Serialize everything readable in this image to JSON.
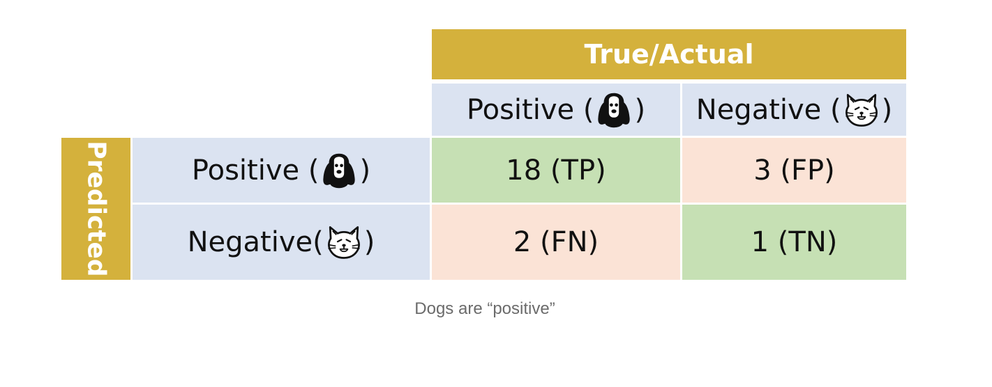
{
  "matrix": {
    "actual_header": "True/Actual",
    "predicted_header": "Predicted",
    "col_labels": [
      "Positive (",
      "Negative ("
    ],
    "row_labels": [
      "Positive (",
      "Negative("
    ],
    "close_paren": ")",
    "cells": [
      [
        "18 (TP)",
        "3 (FP)"
      ],
      [
        "2 (FN)",
        "1 (TN)"
      ]
    ],
    "icons": {
      "positive": "dog-icon",
      "negative": "cat-icon"
    },
    "colors": {
      "header": "#d4b13c",
      "label_bg": "#dbe3f1",
      "correct": "#c6e0b4",
      "incorrect": "#fbe3d6"
    }
  },
  "caption": "Dogs are “positive”"
}
